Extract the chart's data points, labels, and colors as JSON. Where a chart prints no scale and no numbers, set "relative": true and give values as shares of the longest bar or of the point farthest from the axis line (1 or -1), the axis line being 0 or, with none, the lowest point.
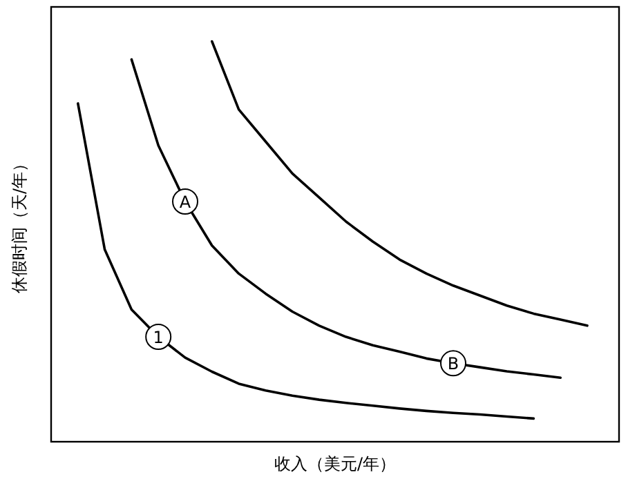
{
  "chart_data": {
    "type": "line",
    "relative": true,
    "xlabel": "收入（美元/年）",
    "ylabel": "休假时间（天/年）",
    "categories": [
      null,
      null,
      null,
      null,
      null,
      null,
      null,
      null,
      null,
      null,
      null,
      null,
      null,
      null,
      null,
      null,
      null,
      null,
      null,
      null
    ],
    "series": [
      {
        "color": "#000000",
        "values": [
          0.845,
          0.48,
          0.33,
          0.262,
          0.21,
          0.175,
          0.145,
          0.128,
          0.115,
          0.105,
          0.097,
          0.09,
          0.083,
          0.077,
          0.072,
          0.068,
          0.063,
          0.058,
          null,
          null
        ]
      },
      {
        "color": "#000000",
        "values": [
          null,
          null,
          0.955,
          0.74,
          0.6,
          0.49,
          0.42,
          0.37,
          0.325,
          0.29,
          0.262,
          0.241,
          0.225,
          0.208,
          0.196,
          0.186,
          0.176,
          0.168,
          0.16,
          null
        ]
      },
      {
        "color": "#000000",
        "values": [
          null,
          null,
          null,
          null,
          null,
          1.0,
          0.83,
          0.75,
          0.67,
          0.61,
          0.55,
          0.5,
          0.455,
          0.42,
          0.39,
          0.365,
          0.34,
          0.32,
          0.305,
          0.29
        ]
      }
    ],
    "annotations": [
      {
        "text": "1",
        "y": 0.262
      },
      {
        "text": "A",
        "y": 0.6
      },
      {
        "text": "B",
        "y": 0.196
      }
    ]
  }
}
